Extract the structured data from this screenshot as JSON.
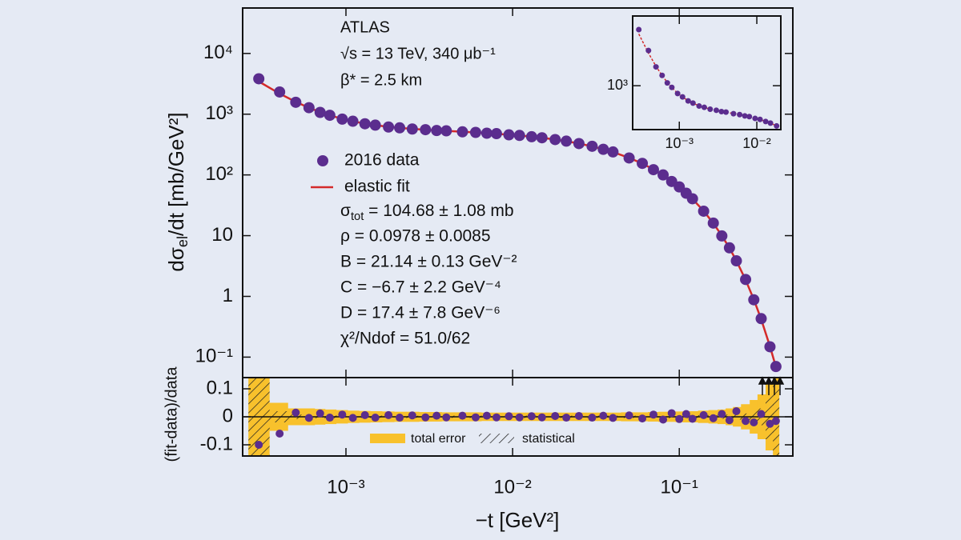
{
  "chart_data": [
    {
      "type": "scatter",
      "y_label": [
        {
          "text": "dσ"
        },
        {
          "text": "el",
          "sub": true
        },
        {
          "text": "/dt [mb/GeV²]"
        }
      ],
      "annotations": [
        "ATLAS",
        "√s = 13 TeV, 340 μb⁻¹",
        "β* = 2.5 km"
      ],
      "parameters": [
        [
          {
            "text": "σ"
          },
          {
            "text": "tot",
            "sub": true
          },
          {
            "text": " = 104.68 ± 1.08 mb"
          }
        ],
        "ρ = 0.0978 ± 0.0085",
        "B = 21.14 ± 0.13 GeV⁻²",
        "C = −6.7 ± 2.2 GeV⁻⁴",
        "D = 17.4 ± 7.8 GeV⁻⁶",
        "χ²/Ndof = 51.0/62"
      ],
      "x": [
        0.0003,
        0.0004,
        0.0005,
        0.0006,
        0.0007,
        0.0008,
        0.00095,
        0.0011,
        0.0013,
        0.0015,
        0.0018,
        0.0021,
        0.0025,
        0.003,
        0.0035,
        0.004,
        0.005,
        0.006,
        0.007,
        0.008,
        0.0095,
        0.011,
        0.013,
        0.015,
        0.018,
        0.021,
        0.025,
        0.03,
        0.035,
        0.04,
        0.05,
        0.06,
        0.07,
        0.08,
        0.09,
        0.1,
        0.11,
        0.12,
        0.14,
        0.16,
        0.18,
        0.2,
        0.22,
        0.25,
        0.28,
        0.31,
        0.35,
        0.38
      ],
      "series": [
        {
          "name": "2016 data",
          "color": "#5b2d8e",
          "values": [
            3830,
            2320,
            1570,
            1280,
            1070,
            960,
            830,
            765,
            695,
            660,
            615,
            596,
            570,
            556,
            538,
            532,
            512,
            501,
            486,
            478,
            457,
            447,
            425,
            409,
            382,
            360,
            328,
            296,
            264,
            239,
            190,
            155,
            122,
            100,
            78,
            63.5,
            50,
            40.5,
            25.3,
            16.1,
            9.9,
            6.3,
            3.85,
            1.9,
            0.88,
            0.43,
            0.148,
            0.07
          ]
        },
        {
          "name": "elastic fit",
          "color": "#d42a2a",
          "values": [
            3450,
            2180,
            1594,
            1275,
            1083,
            957,
            837,
            762,
            699,
            658,
            619,
            594,
            573,
            555,
            540,
            531,
            514,
            500,
            488,
            477,
            458,
            446,
            426,
            408,
            383,
            359,
            329,
            295,
            265,
            238,
            191,
            154,
            123,
            99,
            79,
            63,
            50.5,
            40.2,
            25.5,
            16.0,
            10.0,
            6.25,
            3.87,
            1.87,
            0.89,
            0.42,
            0.15,
            0.069
          ]
        }
      ],
      "log_x": true,
      "log_y": true,
      "xlim": [
        0.00024,
        0.48
      ],
      "ylim": [
        0.046,
        56000
      ],
      "yticks": [
        {
          "value": 0.1,
          "label": "10⁻¹"
        },
        1,
        10,
        {
          "value": 100,
          "label": "10²"
        },
        {
          "value": 1000,
          "label": "10³"
        },
        {
          "value": 10000,
          "label": "10⁴"
        }
      ]
    },
    {
      "type": "scatter",
      "y_label": "(fit-data)/data",
      "x_label": "−t [GeV²]",
      "x": [
        0.0003,
        0.0004,
        0.0005,
        0.0006,
        0.0007,
        0.0008,
        0.00095,
        0.0011,
        0.0013,
        0.0015,
        0.0018,
        0.0021,
        0.0025,
        0.003,
        0.0035,
        0.004,
        0.005,
        0.006,
        0.007,
        0.008,
        0.0095,
        0.011,
        0.013,
        0.015,
        0.018,
        0.021,
        0.025,
        0.03,
        0.035,
        0.04,
        0.05,
        0.06,
        0.07,
        0.08,
        0.09,
        0.1,
        0.11,
        0.12,
        0.14,
        0.16,
        0.18,
        0.2,
        0.22,
        0.25,
        0.28,
        0.31,
        0.35,
        0.38
      ],
      "series": [
        {
          "color": "#5b2d8e",
          "values": [
            -0.1,
            -0.06,
            0.015,
            -0.004,
            0.012,
            -0.003,
            0.008,
            -0.004,
            0.006,
            -0.003,
            0.006,
            -0.003,
            0.005,
            -0.002,
            0.004,
            -0.002,
            0.004,
            -0.002,
            0.004,
            -0.002,
            0.002,
            -0.002,
            0.002,
            -0.002,
            0.003,
            -0.003,
            0.003,
            -0.003,
            0.004,
            -0.004,
            0.005,
            -0.006,
            0.008,
            -0.01,
            0.013,
            -0.008,
            0.01,
            -0.007,
            0.006,
            -0.005,
            0.01,
            -0.012,
            0.02,
            -0.015,
            -0.02,
            0.01,
            -0.025,
            -0.015
          ]
        }
      ],
      "bands": [
        {
          "name": "total error",
          "color": "#f8c12c",
          "values": [
            0.14,
            0.05,
            0.03,
            0.03,
            0.028,
            0.026,
            0.024,
            0.022,
            0.021,
            0.02,
            0.019,
            0.018,
            0.018,
            0.017,
            0.017,
            0.016,
            0.016,
            0.016,
            0.015,
            0.015,
            0.015,
            0.015,
            0.015,
            0.015,
            0.015,
            0.015,
            0.015,
            0.015,
            0.015,
            0.015,
            0.016,
            0.016,
            0.017,
            0.018,
            0.018,
            0.019,
            0.02,
            0.02,
            0.022,
            0.024,
            0.026,
            0.03,
            0.035,
            0.045,
            0.06,
            0.08,
            0.12,
            0.14
          ]
        },
        {
          "name": "statistical",
          "pattern": "hatch",
          "values": [
            0.14,
            0.02,
            0.008,
            0.006,
            0.005,
            0.005,
            0.004,
            0.004,
            0.004,
            0.004,
            0.004,
            0.004,
            0.004,
            0.004,
            0.004,
            0.004,
            0.004,
            0.004,
            0.004,
            0.004,
            0.004,
            0.004,
            0.004,
            0.004,
            0.004,
            0.004,
            0.004,
            0.004,
            0.004,
            0.004,
            0.004,
            0.004,
            0.004,
            0.004,
            0.005,
            0.005,
            0.005,
            0.005,
            0.006,
            0.006,
            0.007,
            0.008,
            0.01,
            0.012,
            0.02,
            0.03,
            0.08,
            0.14
          ]
        }
      ],
      "log_x": true,
      "xlim": [
        0.00024,
        0.48
      ],
      "ylim": [
        -0.14,
        0.14
      ],
      "xticks": [
        {
          "value": 0.001,
          "label": "10⁻³"
        },
        {
          "value": 0.01,
          "label": "10⁻²"
        },
        {
          "value": 0.1,
          "label": "10⁻¹"
        }
      ],
      "yticks": [
        -0.1,
        0,
        0.1
      ]
    },
    {
      "type": "scatter",
      "x": [
        0.0003,
        0.0004,
        0.0005,
        0.0006,
        0.0007,
        0.0008,
        0.00095,
        0.0011,
        0.0013,
        0.0015,
        0.0018,
        0.0021,
        0.0025,
        0.003,
        0.0035,
        0.004,
        0.005,
        0.006,
        0.007,
        0.008,
        0.0095,
        0.011,
        0.013,
        0.015,
        0.018
      ],
      "series": [
        {
          "color": "#5b2d8e",
          "values": [
            3830,
            2320,
            1570,
            1280,
            1070,
            960,
            830,
            765,
            695,
            660,
            615,
            596,
            570,
            556,
            538,
            532,
            512,
            501,
            486,
            478,
            457,
            447,
            425,
            409,
            382
          ]
        },
        {
          "color": "#d42a2a",
          "values": [
            3450,
            2180,
            1594,
            1275,
            1083,
            957,
            837,
            762,
            699,
            658,
            619,
            594,
            573,
            555,
            540,
            531,
            514,
            500,
            488,
            477,
            458,
            446,
            426,
            408,
            383
          ]
        }
      ],
      "log_x": true,
      "log_y": true,
      "xlim": [
        0.00025,
        0.0204
      ],
      "ylim": [
        350,
        5300
      ],
      "xticks": [
        {
          "value": 0.001,
          "label": "10⁻³"
        },
        {
          "value": 0.01,
          "label": "10⁻²"
        }
      ],
      "yticks": [
        {
          "value": 1000,
          "label": "10³"
        }
      ]
    }
  ]
}
